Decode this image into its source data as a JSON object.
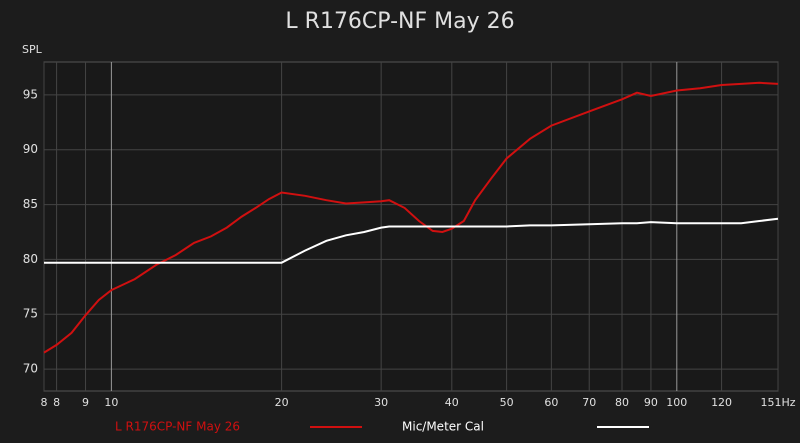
{
  "chart_data": {
    "type": "line",
    "title": "L R176CP-NF May 26",
    "ylabel": "SPL",
    "x": [
      7.6,
      8,
      8.5,
      9,
      9.5,
      10,
      11,
      12,
      13,
      14,
      15,
      16,
      17,
      18,
      19,
      20,
      22,
      24,
      26,
      28,
      30,
      31,
      33,
      35,
      37,
      38.5,
      40,
      42,
      44,
      47,
      50,
      55,
      60,
      70,
      80,
      85,
      90,
      100,
      110,
      120,
      130,
      140,
      151
    ],
    "series": [
      {
        "name": "L R176CP-NF May 26",
        "color": "#d01010",
        "values": [
          71.5,
          72.2,
          73.3,
          74.9,
          76.3,
          77.2,
          78.2,
          79.5,
          80.4,
          81.5,
          82.1,
          82.9,
          83.9,
          84.7,
          85.5,
          86.1,
          85.8,
          85.4,
          85.1,
          85.2,
          85.3,
          85.4,
          84.7,
          83.5,
          82.6,
          82.5,
          82.8,
          83.5,
          85.4,
          87.4,
          89.2,
          91,
          92.2,
          93.5,
          94.6,
          95.2,
          94.9,
          95.4,
          95.6,
          95.9,
          96,
          96.1,
          96.0
        ]
      },
      {
        "name": "Mic/Meter Cal",
        "color": "#ffffff",
        "values": [
          79.7,
          79.7,
          79.7,
          79.7,
          79.7,
          79.7,
          79.7,
          79.7,
          79.7,
          79.7,
          79.7,
          79.7,
          79.7,
          79.7,
          79.7,
          79.7,
          80.8,
          81.7,
          82.2,
          82.5,
          82.9,
          83.0,
          83.0,
          83.0,
          83.0,
          83.0,
          83.0,
          83.0,
          83.0,
          83.0,
          83.0,
          83.1,
          83.1,
          83.2,
          83.3,
          83.3,
          83.4,
          83.3,
          83.3,
          83.3,
          83.3,
          83.5,
          83.7
        ]
      }
    ],
    "xlog": true,
    "xlim": [
      7.6,
      151
    ],
    "xticks": [
      {
        "value": 7.6,
        "label": "8"
      },
      8,
      9,
      10,
      20,
      30,
      40,
      50,
      60,
      70,
      80,
      90,
      100,
      120,
      {
        "value": 151,
        "label": "151Hz"
      }
    ],
    "ylim": [
      68,
      98
    ],
    "yticks": [
      70,
      75,
      80,
      85,
      90,
      95
    ],
    "grid": true,
    "legend": "bottom"
  }
}
